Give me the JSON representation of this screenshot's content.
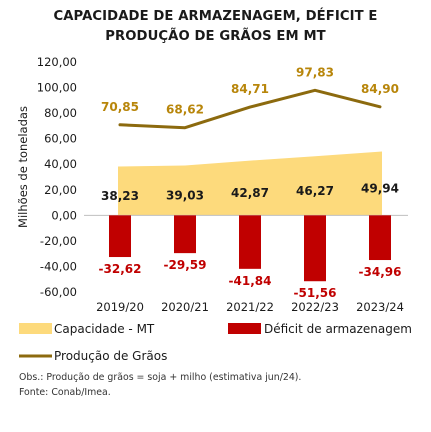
{
  "chart_data": {
    "type": "bar",
    "title": [
      "CAPACIDADE DE ARMAZENAGEM, DÉFICIT E",
      "PRODUÇÃO DE GRÃOS EM MT"
    ],
    "ylabel": "Milhões de toneladas",
    "ylim": [
      -60,
      120
    ],
    "yticks": [
      "120,00",
      "100,00",
      "80,00",
      "60,00",
      "40,00",
      "20,00",
      "0,00",
      "-20,00",
      "-40,00",
      "-60,00"
    ],
    "categories": [
      "2019/20",
      "2020/21",
      "2021/22",
      "2022/23",
      "2023/24"
    ],
    "series": [
      {
        "name": "Capacidade - MT",
        "kind": "area",
        "color": "#FDDA7C",
        "values": [
          38.23,
          39.03,
          42.87,
          46.27,
          49.94
        ],
        "labels": [
          "38,23",
          "39,03",
          "42,87",
          "46,27",
          "49,94"
        ]
      },
      {
        "name": "Déficit de armazenagem",
        "kind": "bar",
        "color": "#C00000",
        "values": [
          -32.62,
          -29.59,
          -41.84,
          -51.56,
          -34.96
        ],
        "labels": [
          "-32,62",
          "-29,59",
          "-41,84",
          "-51,56",
          "-34,96"
        ]
      },
      {
        "name": "Produção de Grãos",
        "kind": "line",
        "color": "#8C6A0E",
        "values": [
          70.85,
          68.62,
          84.71,
          97.83,
          84.9
        ],
        "labels": [
          "70,85",
          "68,62",
          "84,71",
          "97,83",
          "84,90"
        ]
      }
    ],
    "label_colors": {
      "capacity": "#1a1a1a",
      "deficit": "#C00000",
      "production": "#B8860B"
    },
    "legend_position": "bottom",
    "grid": false
  },
  "notes": {
    "obs": "Obs.: Produção de grãos = soja + milho (estimativa jun/24).",
    "source": "Fonte: Conab/Imea."
  }
}
